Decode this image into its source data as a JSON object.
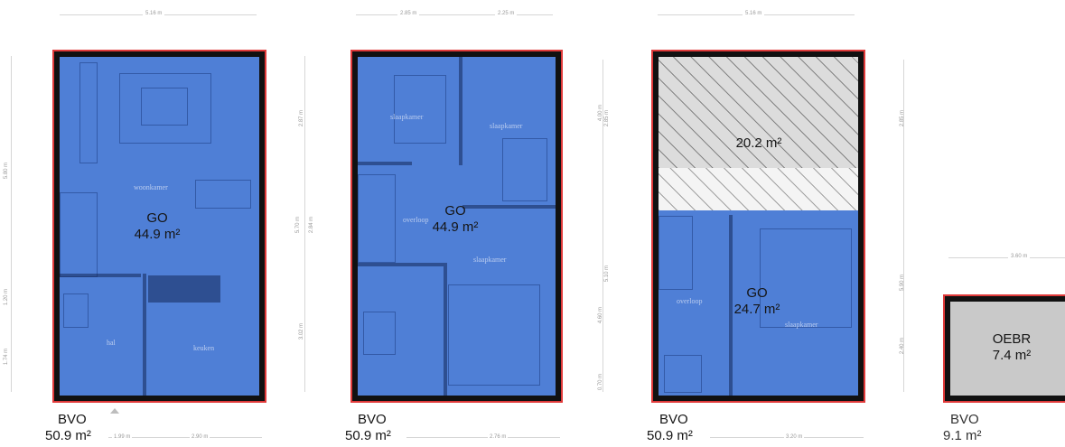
{
  "plans": [
    {
      "top_dims": [
        "5.16 m"
      ],
      "side_dims": [
        "5.80 m",
        "1.20 m",
        "1.74 m"
      ],
      "right_dims": [
        "2.87 m",
        "5.70 m",
        "3.02 m"
      ],
      "bottom_dims": [
        "1.99 m",
        "2.90 m"
      ],
      "rooms": [
        "woonkamer",
        "hal",
        "keuken"
      ],
      "area_code": "GO",
      "area_value": "44.9 m²",
      "bvo_label": "BVO",
      "bvo_value": "50.9 m²"
    },
    {
      "top_dims": [
        "2.85 m",
        "2.25 m"
      ],
      "side_dims": [
        "4.00 m",
        "2.85 m",
        "4.60 m",
        "0.70 m"
      ],
      "right_dims": [
        "2.84 m",
        "5.10 m"
      ],
      "bottom_dims": [
        "2.76 m"
      ],
      "rooms": [
        "slaapkamer",
        "slaapkamer",
        "overloop",
        "slaapkamer"
      ],
      "area_code": "GO",
      "area_value": "44.9 m²",
      "bvo_label": "BVO",
      "bvo_value": "50.9 m²"
    },
    {
      "top_dims": [
        "5.16 m"
      ],
      "right_dims": [
        "2.85 m",
        "5.90 m",
        "2.40 m"
      ],
      "bottom_dims": [
        "3.20 m"
      ],
      "rooms": [
        "overloop",
        "slaapkamer"
      ],
      "hatch_area": "20.2 m²",
      "area_code": "GO",
      "area_value": "24.7 m²",
      "bvo_label": "BVO",
      "bvo_value": "50.9 m²"
    },
    {
      "top_dims": [
        "3.60 m"
      ],
      "area_code": "OEBR",
      "area_value": "7.4 m²",
      "bvo_label": "BVO",
      "bvo_value": "9.1 m²"
    }
  ]
}
